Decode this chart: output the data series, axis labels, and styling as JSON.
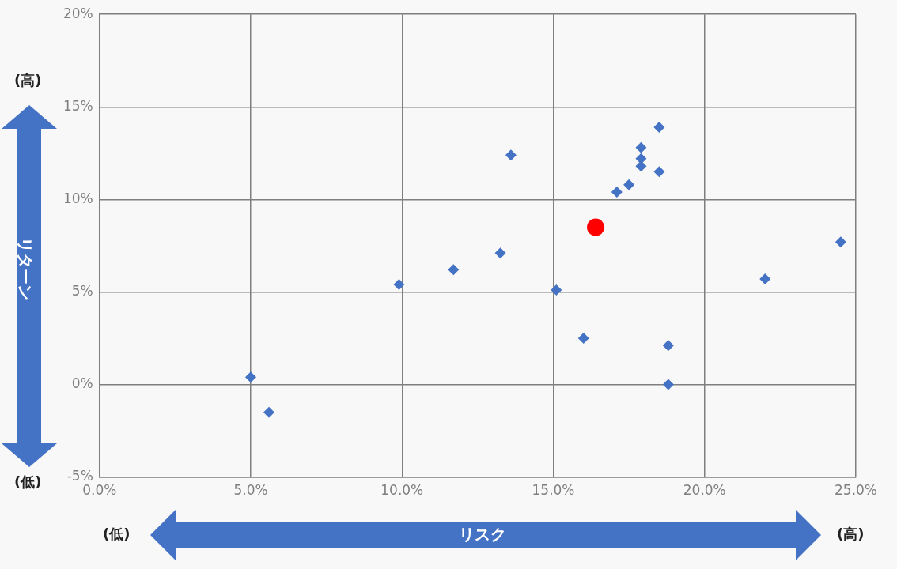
{
  "chart_data": {
    "type": "scatter",
    "xlabel": "リスク",
    "ylabel": "リターン",
    "annotations": [
      "(高)",
      "(低)",
      "(低)",
      "(高)"
    ],
    "series": [
      {
        "color": "#4472c4",
        "marker": "diamond",
        "x": [
          5.0,
          5.6,
          9.9,
          11.7,
          13.25,
          13.6,
          15.1,
          16.0,
          17.1,
          17.5,
          17.9,
          17.9,
          17.9,
          18.5,
          18.5,
          18.8,
          18.8,
          22.0,
          24.5
        ],
        "values": [
          0.4,
          -1.5,
          5.4,
          6.2,
          7.1,
          12.4,
          5.1,
          2.5,
          10.4,
          10.8,
          12.8,
          12.2,
          11.8,
          13.9,
          11.5,
          2.1,
          0.0,
          5.7,
          7.7
        ]
      },
      {
        "color": "#ff0000",
        "marker": "circle",
        "x": [
          16.4
        ],
        "values": [
          8.5
        ]
      }
    ],
    "xlim": [
      0,
      25
    ],
    "xticks": [
      {
        "value": 0,
        "label": "0.0%"
      },
      {
        "value": 5,
        "label": "5.0%"
      },
      {
        "value": 10,
        "label": "10.0%"
      },
      {
        "value": 15,
        "label": "15.0%"
      },
      {
        "value": 20,
        "label": "20.0%"
      },
      {
        "value": 25,
        "label": "25.0%"
      }
    ],
    "ylim": [
      -5,
      20
    ],
    "yticks": [
      {
        "value": -5,
        "label": "-5%"
      },
      {
        "value": 0,
        "label": "0%"
      },
      {
        "value": 5,
        "label": "5%"
      },
      {
        "value": 10,
        "label": "10%"
      },
      {
        "value": 15,
        "label": "15%"
      },
      {
        "value": 20,
        "label": "20%"
      }
    ],
    "grid": true,
    "legend": false
  }
}
